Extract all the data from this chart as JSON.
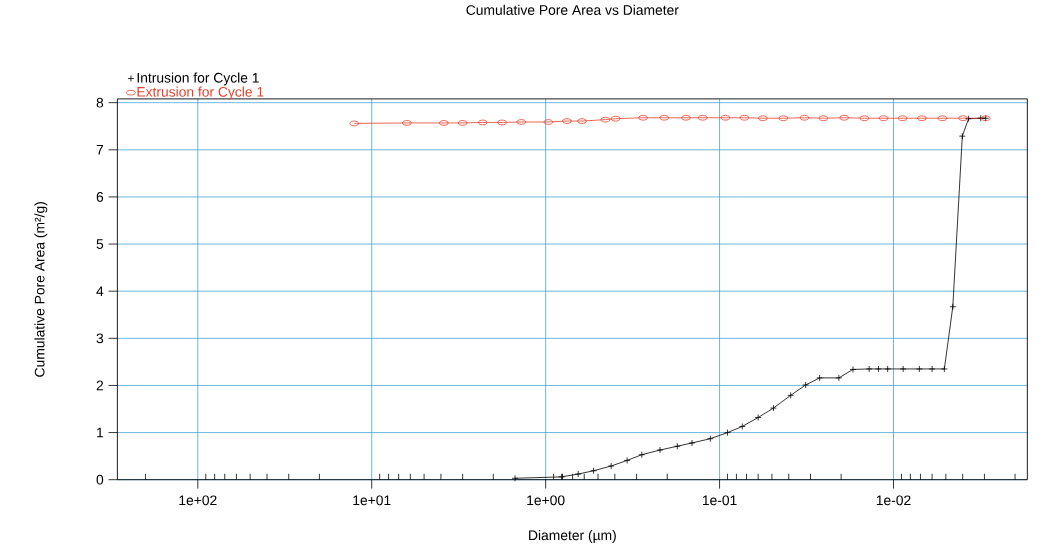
{
  "chart_data": {
    "type": "line",
    "title": "Cumulative Pore Area vs Diameter",
    "xlabel": "Diameter (µm)",
    "ylabel": "Cumulative Pore Area (m²/g)",
    "log": "x",
    "grid": true,
    "legend": "top left",
    "xlim": [
      290,
      0.0017
    ],
    "ylim": [
      0,
      8.08
    ],
    "xticks": [
      {
        "value": 200,
        "label": null
      },
      {
        "value": 100,
        "label": "1e+02"
      },
      {
        "value": 90,
        "label": null
      },
      {
        "value": 80,
        "label": null
      },
      {
        "value": 70,
        "label": null
      },
      {
        "value": 60,
        "label": null
      },
      {
        "value": 50,
        "label": null
      },
      {
        "value": 40,
        "label": null
      },
      {
        "value": 30,
        "label": null
      },
      {
        "value": 20,
        "label": null
      },
      {
        "value": 10,
        "label": "1e+01"
      },
      {
        "value": 9,
        "label": null
      },
      {
        "value": 8,
        "label": null
      },
      {
        "value": 7,
        "label": null
      },
      {
        "value": 6,
        "label": null
      },
      {
        "value": 5,
        "label": null
      },
      {
        "value": 4,
        "label": null
      },
      {
        "value": 3,
        "label": null
      },
      {
        "value": 2,
        "label": null
      },
      {
        "value": 1,
        "label": "1e+00"
      },
      {
        "value": 0.9,
        "label": null
      },
      {
        "value": 0.8,
        "label": null
      },
      {
        "value": 0.7,
        "label": null
      },
      {
        "value": 0.6,
        "label": null
      },
      {
        "value": 0.5,
        "label": null
      },
      {
        "value": 0.4,
        "label": null
      },
      {
        "value": 0.3,
        "label": null
      },
      {
        "value": 0.2,
        "label": null
      },
      {
        "value": 0.1,
        "label": "1e-01"
      },
      {
        "value": 0.09,
        "label": null
      },
      {
        "value": 0.08,
        "label": null
      },
      {
        "value": 0.07,
        "label": null
      },
      {
        "value": 0.06,
        "label": null
      },
      {
        "value": 0.05,
        "label": null
      },
      {
        "value": 0.04,
        "label": null
      },
      {
        "value": 0.03,
        "label": null
      },
      {
        "value": 0.02,
        "label": null
      },
      {
        "value": 0.01,
        "label": "1e-02"
      },
      {
        "value": 0.009,
        "label": null
      },
      {
        "value": 0.008,
        "label": null
      },
      {
        "value": 0.007,
        "label": null
      },
      {
        "value": 0.006,
        "label": null
      },
      {
        "value": 0.005,
        "label": null
      },
      {
        "value": 0.004,
        "label": null
      },
      {
        "value": 0.003,
        "label": null
      },
      {
        "value": 0.002,
        "label": null
      }
    ],
    "yticks": [
      0,
      1,
      2,
      3,
      4,
      5,
      6,
      7,
      8
    ],
    "series": [
      {
        "name": "Intrusion for Cycle 1",
        "color": "#000000",
        "marker": "cross",
        "x": [
          1.5,
          0.81,
          0.65,
          0.53,
          0.42,
          0.34,
          0.28,
          0.22,
          0.175,
          0.144,
          0.113,
          0.09,
          0.074,
          0.06,
          0.049,
          0.039,
          0.032,
          0.0266,
          0.0206,
          0.0171,
          0.0138,
          0.0122,
          0.0108,
          0.0088,
          0.0071,
          0.006,
          0.0051,
          0.00456,
          0.00402,
          0.0037,
          0.00315,
          0.00295
        ],
        "values": [
          0.03,
          0.06,
          0.12,
          0.19,
          0.29,
          0.41,
          0.53,
          0.63,
          0.71,
          0.78,
          0.87,
          1.0,
          1.13,
          1.32,
          1.52,
          1.79,
          2.01,
          2.16,
          2.16,
          2.34,
          2.35,
          2.35,
          2.35,
          2.35,
          2.35,
          2.35,
          2.35,
          3.67,
          7.29,
          7.66,
          7.67,
          7.67
        ]
      },
      {
        "name": "Extrusion for Cycle 1",
        "color": "#e8402a",
        "marker": "circle",
        "x": [
          12.6,
          6.28,
          3.85,
          3.0,
          2.3,
          1.78,
          1.38,
          0.965,
          0.755,
          0.618,
          0.453,
          0.396,
          0.275,
          0.208,
          0.156,
          0.125,
          0.0925,
          0.0719,
          0.0564,
          0.043,
          0.0325,
          0.0253,
          0.0192,
          0.0147,
          0.0114,
          0.00887,
          0.00687,
          0.00523,
          0.00398,
          0.00295
        ],
        "values": [
          7.56,
          7.57,
          7.57,
          7.57,
          7.58,
          7.58,
          7.59,
          7.59,
          7.61,
          7.61,
          7.64,
          7.66,
          7.68,
          7.68,
          7.68,
          7.68,
          7.68,
          7.68,
          7.67,
          7.67,
          7.68,
          7.67,
          7.68,
          7.67,
          7.67,
          7.67,
          7.67,
          7.67,
          7.67,
          7.67
        ]
      }
    ]
  }
}
